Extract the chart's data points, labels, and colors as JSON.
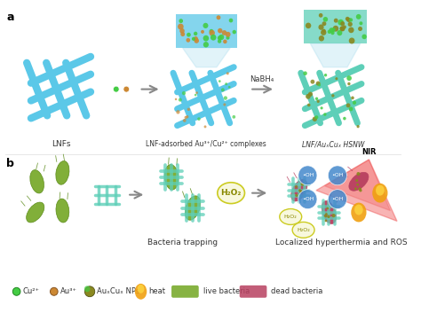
{
  "panel_a_label": "a",
  "panel_b_label": "b",
  "label_lnfs": "LNFs",
  "label_lnf_adsorbed": "LNF-adsorbed Au³⁺/Cu²⁺ complexes",
  "label_lnf_hsnw": "LNF/AuₓCuₓ HSNW",
  "label_nabh4": "NaBH₄",
  "label_bacteria_trapping": "Bacteria trapping",
  "label_localized": "Localized hyperthermia and ROS",
  "label_nir": "NIR",
  "label_h2o2": "H₂O₂",
  "label_oh": "•OH",
  "legend_cu2": "Cu²⁺",
  "legend_au3": "Au³⁺",
  "legend_auncu": "AuₓCuₓ NPs",
  "legend_heat": "heat",
  "legend_live": "live bacteria",
  "legend_dead": "dead bacteria",
  "bg_color": "#ffffff",
  "fiber_blue": "#5bc8e8",
  "fiber_blue_dark": "#4ab0d0",
  "fiber_teal": "#5ecfb8",
  "fiber_teal_dark": "#3db89e",
  "bacteria_live": "#7aab2e",
  "bacteria_live_dark": "#5a8a18",
  "bacteria_dead": "#b84060",
  "cu_color": "#44cc44",
  "au_color": "#cc8833",
  "auncu_color": "#8a8820",
  "heat_color": "#f0a010",
  "blue_oh_color": "#4488cc",
  "arrow_gray": "#888888",
  "nir_color": "#ee4444"
}
